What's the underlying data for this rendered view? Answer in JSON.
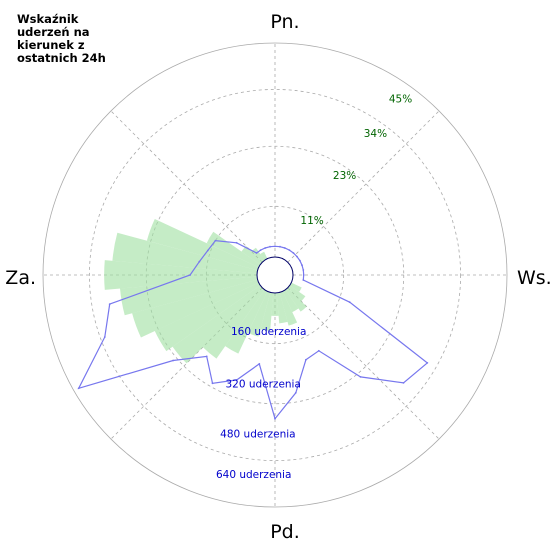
{
  "chart_data": {
    "type": "polar-rose",
    "title": "Wskaźnik\nuderzeń na\nkierunek z\nostatnich 24h",
    "directions": {
      "north": "Pn.",
      "east": "Ws.",
      "south": "Pd.",
      "west": "Za."
    },
    "percent_scale": {
      "ticks": [
        "11%",
        "23%",
        "34%",
        "45%"
      ],
      "max": 56
    },
    "count_scale": {
      "ticks": [
        "160 uderzenia",
        "320 uderzenia",
        "480 uderzenia",
        "640 uderzenia"
      ],
      "max": 800
    },
    "bearings": [
      0,
      10,
      20,
      30,
      40,
      50,
      60,
      70,
      80,
      90,
      100,
      110,
      120,
      130,
      140,
      150,
      160,
      170,
      180,
      190,
      200,
      210,
      220,
      230,
      240,
      250,
      260,
      270,
      280,
      290,
      300,
      310,
      320,
      330,
      340,
      350
    ],
    "series": [
      {
        "kind": "bars",
        "unit": "percent",
        "values": [
          0,
          0,
          0,
          0,
          0,
          0,
          0,
          0,
          0,
          0,
          0,
          0,
          3,
          5,
          7,
          6,
          9,
          8,
          6,
          10,
          12,
          18,
          22,
          28,
          30,
          34,
          36,
          40,
          38,
          30,
          15,
          6,
          4,
          2,
          0,
          0
        ]
      },
      {
        "kind": "outline",
        "unit": "count",
        "values": [
          40,
          40,
          40,
          40,
          40,
          40,
          40,
          40,
          40,
          40,
          40,
          230,
          590,
          560,
          430,
          260,
          270,
          380,
          470,
          270,
          350,
          400,
          330,
          430,
          780,
          610,
          560,
          250,
          220,
          200,
          190,
          120,
          40,
          40,
          40,
          40
        ]
      }
    ],
    "colors": {
      "bars": "#9fe0a0",
      "outline": "#7777ee",
      "grid": "#aaaaaa",
      "inner": "#000066",
      "percent_labels": "#006400",
      "count_labels": "#0000cc"
    },
    "grid": true
  }
}
